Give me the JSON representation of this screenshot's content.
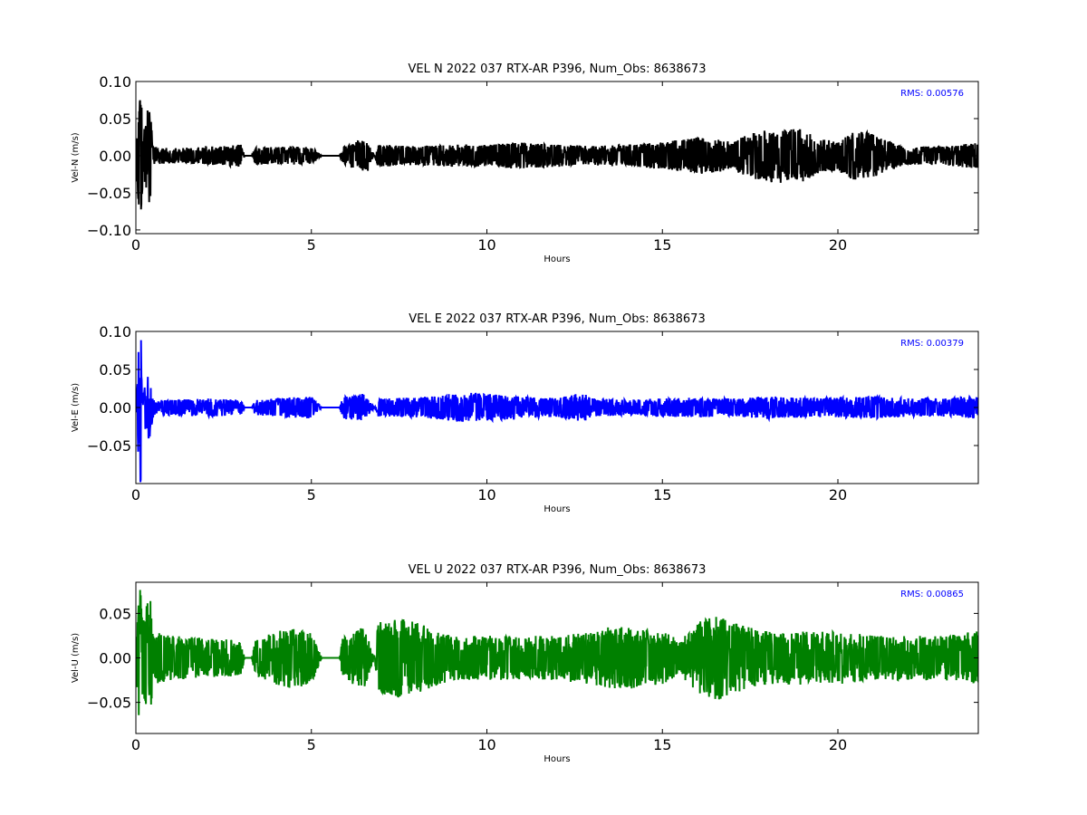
{
  "chart_data": [
    {
      "type": "line",
      "title": "VEL N 2022 037 RTX-AR  P396, Num_Obs: 8638673",
      "xlabel": "Hours",
      "ylabel": "Vel-N (m/s)",
      "xlim": [
        0,
        24
      ],
      "ylim": [
        -0.105,
        0.1
      ],
      "xticks": [
        0,
        5,
        10,
        15,
        20
      ],
      "xtick_labels": [
        "0",
        "5",
        "10",
        "15",
        "20"
      ],
      "yticks": [
        -0.1,
        -0.05,
        0.0,
        0.05,
        0.1
      ],
      "ytick_labels": [
        "−0.10",
        "−0.05",
        "0.00",
        "0.05",
        "0.10"
      ],
      "grid": false,
      "annotation": "RMS:  0.00576",
      "annotation_color": "#0000ff",
      "series": [
        {
          "color": "#000000",
          "x": [
            0.0,
            0.1,
            0.15,
            0.2,
            0.4,
            0.45,
            0.5,
            1,
            2,
            3,
            3.1,
            3.3,
            3.4,
            4,
            5,
            5.3,
            5.4,
            5.8,
            5.9,
            6.3,
            6.5,
            6.6,
            6.8,
            6.9,
            8,
            9,
            10,
            10.8,
            12,
            13,
            14,
            15,
            16,
            17,
            17.5,
            18,
            18.5,
            19,
            19.5,
            20,
            20.5,
            21,
            21.5,
            22,
            23,
            24
          ],
          "amplitude": [
            0.01,
            0.1,
            0.1,
            0.03,
            0.08,
            0.04,
            0.012,
            0.01,
            0.012,
            0.015,
            0.0,
            0.0,
            0.012,
            0.012,
            0.012,
            0.0,
            0.0,
            0.0,
            0.012,
            0.02,
            0.02,
            0.022,
            0.0,
            0.015,
            0.013,
            0.015,
            0.015,
            0.018,
            0.015,
            0.013,
            0.015,
            0.018,
            0.025,
            0.02,
            0.03,
            0.035,
            0.038,
            0.035,
            0.022,
            0.02,
            0.035,
            0.03,
            0.018,
            0.012,
            0.013,
            0.018
          ]
        }
      ]
    },
    {
      "type": "line",
      "title": "VEL E 2022 037 RTX-AR  P396, Num_Obs: 8638673",
      "xlabel": "Hours",
      "ylabel": "Vel-E (m/s)",
      "xlim": [
        0,
        24
      ],
      "ylim": [
        -0.1,
        0.1
      ],
      "xticks": [
        0,
        5,
        10,
        15,
        20
      ],
      "xtick_labels": [
        "0",
        "5",
        "10",
        "15",
        "20"
      ],
      "yticks": [
        -0.05,
        0.0,
        0.05,
        0.1
      ],
      "ytick_labels": [
        "−0.05",
        "0.00",
        "0.05",
        "0.10"
      ],
      "grid": false,
      "annotation": "RMS:  0.00379",
      "annotation_color": "#0000ff",
      "series": [
        {
          "color": "#0000ff",
          "x": [
            0.0,
            0.1,
            0.15,
            0.2,
            0.4,
            0.45,
            0.5,
            1,
            2,
            3,
            3.1,
            3.3,
            3.4,
            4,
            5,
            5.3,
            5.4,
            5.8,
            5.9,
            6.5,
            6.8,
            6.9,
            8,
            9,
            9.5,
            10,
            11,
            12,
            12.7,
            13,
            14,
            15,
            16,
            17,
            18,
            19,
            20,
            21,
            22,
            23,
            24
          ],
          "amplitude": [
            0.01,
            0.1,
            0.1,
            0.02,
            0.05,
            0.025,
            0.01,
            0.01,
            0.012,
            0.01,
            0.0,
            0.0,
            0.01,
            0.012,
            0.015,
            0.0,
            0.0,
            0.0,
            0.015,
            0.018,
            0.0,
            0.012,
            0.013,
            0.018,
            0.02,
            0.018,
            0.015,
            0.012,
            0.02,
            0.012,
            0.01,
            0.012,
            0.013,
            0.012,
            0.015,
            0.013,
            0.013,
            0.015,
            0.012,
            0.012,
            0.015
          ]
        }
      ]
    },
    {
      "type": "line",
      "title": "VEL U 2022 037 RTX-AR  P396, Num_Obs: 8638673",
      "xlabel": "Hours",
      "ylabel": "Vel-U (m/s)",
      "xlim": [
        0,
        24
      ],
      "ylim": [
        -0.085,
        0.085
      ],
      "xticks": [
        0,
        5,
        10,
        15,
        20
      ],
      "xtick_labels": [
        "0",
        "5",
        "10",
        "15",
        "20"
      ],
      "yticks": [
        -0.05,
        0.0,
        0.05
      ],
      "ytick_labels": [
        "−0.05",
        "0.00",
        "0.05"
      ],
      "grid": false,
      "annotation": "RMS:  0.00865",
      "annotation_color": "#0000ff",
      "series": [
        {
          "color": "#008000",
          "x": [
            0.0,
            0.1,
            0.15,
            0.2,
            0.4,
            0.45,
            0.5,
            1,
            2,
            3,
            3.1,
            3.3,
            3.4,
            4,
            4.5,
            5,
            5.3,
            5.4,
            5.8,
            5.9,
            6.5,
            6.8,
            6.9,
            7.5,
            8,
            9,
            10,
            11,
            12,
            13,
            13.5,
            14,
            15,
            15.5,
            16,
            16.5,
            17,
            18,
            19,
            20,
            21,
            22,
            23,
            24
          ],
          "amplitude": [
            0.02,
            0.085,
            0.085,
            0.04,
            0.08,
            0.05,
            0.03,
            0.025,
            0.022,
            0.02,
            0.0,
            0.0,
            0.02,
            0.03,
            0.035,
            0.03,
            0.0,
            0.0,
            0.0,
            0.025,
            0.035,
            0.0,
            0.04,
            0.045,
            0.04,
            0.025,
            0.025,
            0.025,
            0.025,
            0.03,
            0.035,
            0.035,
            0.03,
            0.02,
            0.04,
            0.05,
            0.04,
            0.03,
            0.03,
            0.03,
            0.025,
            0.025,
            0.025,
            0.03
          ]
        }
      ]
    }
  ]
}
